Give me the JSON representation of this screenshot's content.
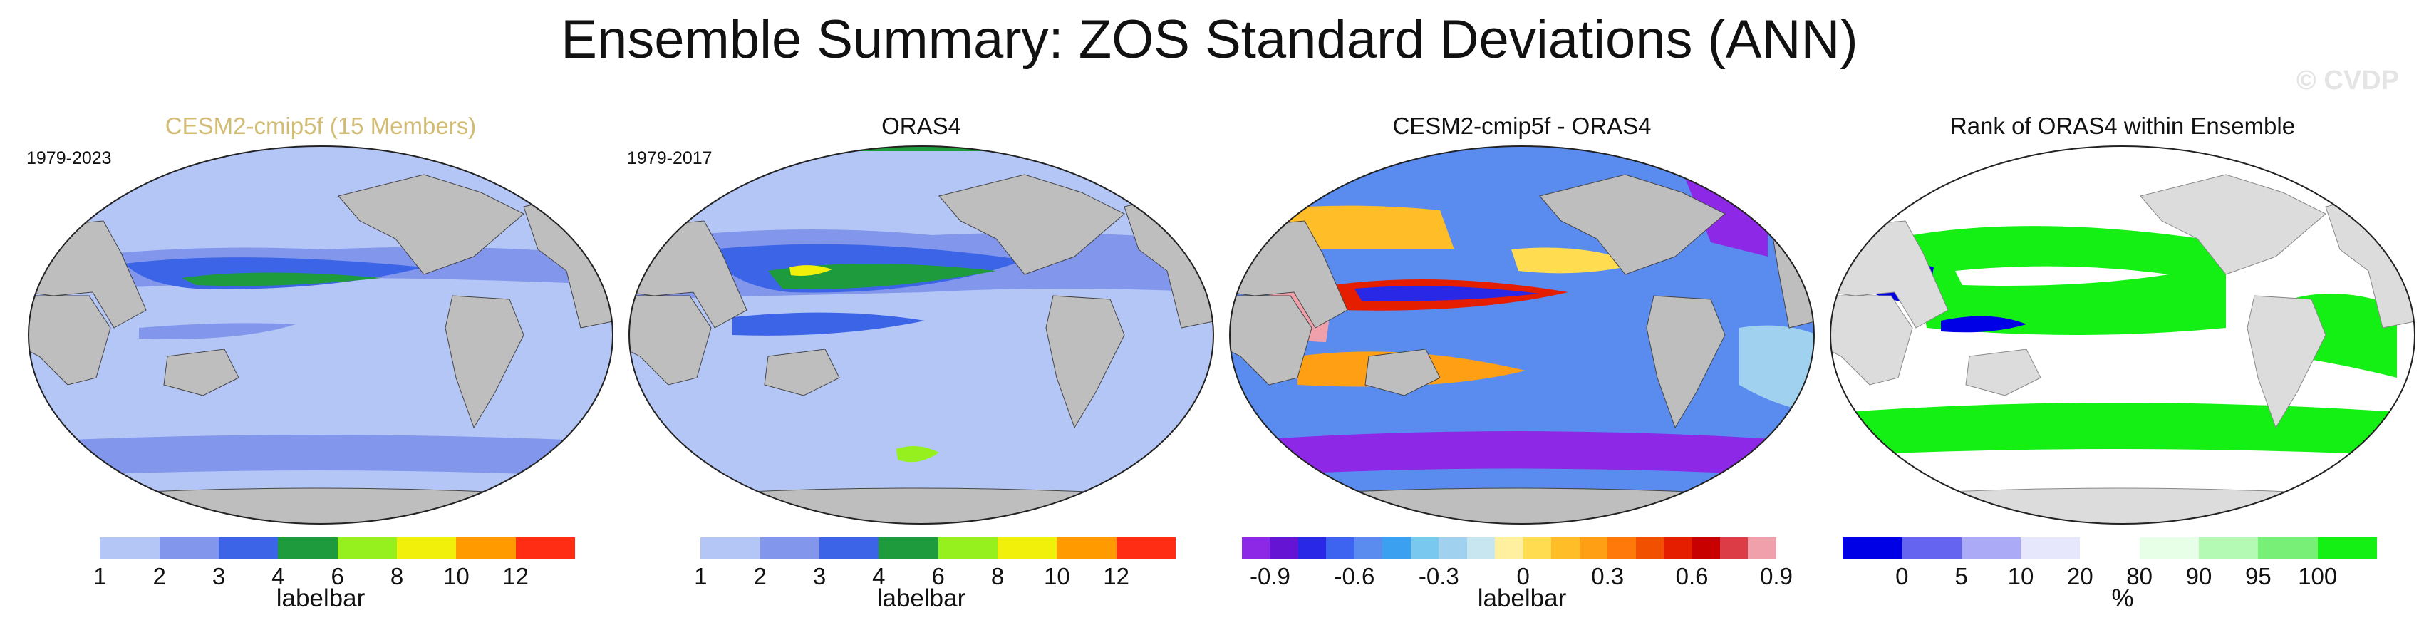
{
  "title": "Ensemble Summary: ZOS Standard Deviations (ANN)",
  "watermark": "© CVDP",
  "chart_data": [
    {
      "type": "heatmap",
      "title": "CESM2-cmip5f (15 Members)",
      "period": "1979-2023",
      "colorbar": {
        "label": "labelbar",
        "ticks": [
          "1",
          "2",
          "3",
          "4",
          "6",
          "8",
          "10",
          "12"
        ],
        "colors": [
          "#ffffff",
          "#b4c6f6",
          "#8296ec",
          "#3c64e6",
          "#1e9b3c",
          "#96f01e",
          "#f0f00a",
          "#ff9b00",
          "#ff2d14"
        ]
      }
    },
    {
      "type": "heatmap",
      "title": "ORAS4",
      "period": "1979-2017",
      "colorbar": {
        "label": "labelbar",
        "ticks": [
          "1",
          "2",
          "3",
          "4",
          "6",
          "8",
          "10",
          "12"
        ],
        "colors": [
          "#ffffff",
          "#b4c6f6",
          "#8296ec",
          "#3c64e6",
          "#1e9b3c",
          "#96f01e",
          "#f0f00a",
          "#ff9b00",
          "#ff2d14"
        ]
      }
    },
    {
      "type": "heatmap",
      "title": "CESM2-cmip5f - ORAS4",
      "period": "",
      "colorbar": {
        "label": "labelbar",
        "ticks": [
          "-0.9",
          "-0.6",
          "-0.3",
          "0",
          "0.3",
          "0.6",
          "0.9"
        ],
        "colors": [
          "#8c28e6",
          "#6414d2",
          "#2828e6",
          "#3c64f0",
          "#5a8cf0",
          "#3ca0f0",
          "#78c8f0",
          "#a0d2f0",
          "#c8e6f0",
          "#fff0a0",
          "#ffdc50",
          "#ffbe28",
          "#ffa014",
          "#ff780a",
          "#f05000",
          "#e61e00",
          "#c80000",
          "#dc3c46",
          "#f0a0aa"
        ]
      }
    },
    {
      "type": "heatmap",
      "title": "Rank of ORAS4 within Ensemble",
      "period": "",
      "colorbar": {
        "label": "%",
        "ticks": [
          "0",
          "5",
          "10",
          "20",
          "80",
          "90",
          "95",
          "100"
        ],
        "colors": [
          "#0000e6",
          "#6464f0",
          "#aaaaf6",
          "#e6e6fc",
          "#ffffff",
          "#e6ffe6",
          "#b4fab4",
          "#78f078",
          "#14f014"
        ]
      }
    }
  ]
}
